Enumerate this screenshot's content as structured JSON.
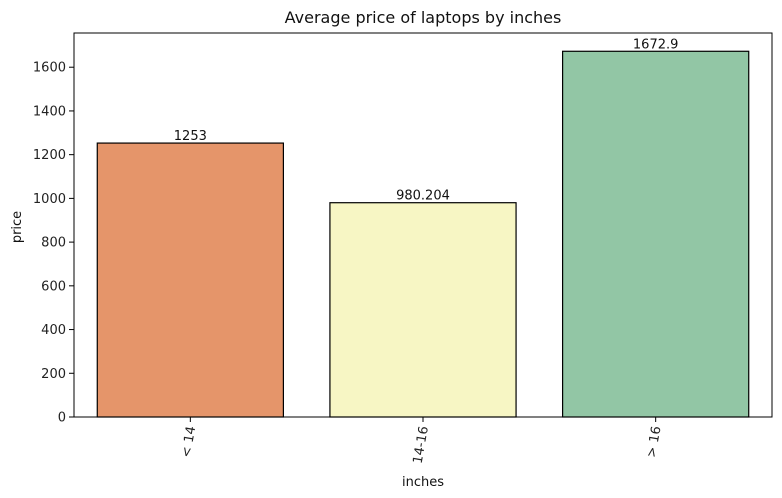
{
  "chart_data": {
    "type": "bar",
    "title": "Average price of laptops by inches",
    "xlabel": "inches",
    "ylabel": "price",
    "categories": [
      "< 14",
      "14-16",
      "> 16"
    ],
    "values": [
      1253,
      980.204,
      1672.9
    ],
    "value_labels": [
      "1253",
      "980.204",
      "1672.9"
    ],
    "colors": [
      "#e5956a",
      "#f7f6c4",
      "#92c6a5"
    ],
    "ylim": [
      0,
      1756.5
    ],
    "yticks": [
      0,
      200,
      400,
      600,
      800,
      1000,
      1200,
      1400,
      1600
    ],
    "grid": false,
    "legend": "none",
    "x_tick_rotation": "vertical-ish (about -80 degrees)"
  }
}
